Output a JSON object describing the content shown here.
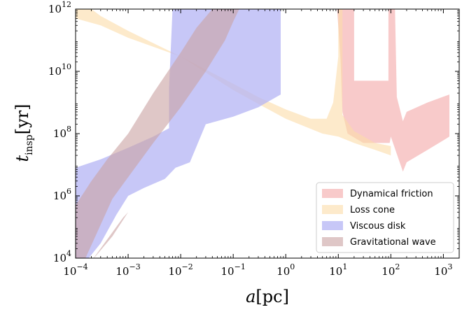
{
  "chart_data": {
    "type": "area",
    "x_scale": "log",
    "y_scale": "log",
    "xlim": [
      0.0001,
      2000
    ],
    "ylim": [
      10000,
      1000000000000
    ],
    "xlabel": {
      "main": "a",
      "unit": "pc"
    },
    "ylabel": {
      "main": "t",
      "sub": "insp",
      "unit": "yr"
    },
    "x_ticks": [
      {
        "value": 0.0001,
        "base": "10",
        "exp": "−4"
      },
      {
        "value": 0.001,
        "base": "10",
        "exp": "−3"
      },
      {
        "value": 0.01,
        "base": "10",
        "exp": "−2"
      },
      {
        "value": 0.1,
        "base": "10",
        "exp": "−1"
      },
      {
        "value": 1,
        "base": "10",
        "exp": "0"
      },
      {
        "value": 10,
        "base": "10",
        "exp": "1"
      },
      {
        "value": 100,
        "base": "10",
        "exp": "2"
      },
      {
        "value": 1000,
        "base": "10",
        "exp": "3"
      }
    ],
    "y_ticks": [
      {
        "value": 10000,
        "base": "10",
        "exp": "4"
      },
      {
        "value": 1000000,
        "base": "10",
        "exp": "6"
      },
      {
        "value": 100000000,
        "base": "10",
        "exp": "8"
      },
      {
        "value": 10000000000,
        "base": "10",
        "exp": "10"
      },
      {
        "value": 1000000000000,
        "base": "10",
        "exp": "12"
      }
    ],
    "grid": false,
    "legend_position": "bottom-right",
    "series": [
      {
        "name": "Dynamical friction",
        "color": "#f4a6a6",
        "opacity": 0.6,
        "polygons": [
          [
            [
              9.5,
              1000000000000.0
            ],
            [
              20,
              1000000000000.0
            ],
            [
              20,
              5000000000.0
            ],
            [
              90,
              5000000000.0
            ],
            [
              90,
              1000000000000.0
            ],
            [
              120,
              1000000000000.0
            ],
            [
              130,
              1500000000.0
            ],
            [
              170,
              250000000.0
            ],
            [
              200,
              500000000.0
            ],
            [
              500,
              1000000000.0
            ],
            [
              1300,
              1800000000.0
            ],
            [
              1300,
              80000000.0
            ],
            [
              500,
              30000000.0
            ],
            [
              200,
              12000000.0
            ],
            [
              170,
              6000000.0
            ],
            [
              100,
              80000000.0
            ],
            [
              95,
              50000000.0
            ],
            [
              30,
              50000000.0
            ],
            [
              15,
              100000000.0
            ],
            [
              12,
              500000000.0
            ],
            [
              11,
              25000000000.0
            ],
            [
              9.5,
              1000000000000.0
            ]
          ]
        ]
      },
      {
        "name": "Loss cone",
        "color": "#fbdca8",
        "opacity": 0.6,
        "polygons": [
          [
            [
              0.0001,
              500000000000.0
            ],
            [
              0.0003,
              300000000000.0
            ],
            [
              0.001,
              120000000000.0
            ],
            [
              0.01,
              30000000000.0
            ],
            [
              0.1,
              4000000000.0
            ],
            [
              0.3,
              1500000000.0
            ],
            [
              1,
              600000000.0
            ],
            [
              3,
              300000000.0
            ],
            [
              6,
              300000000.0
            ],
            [
              8,
              1000000000.0
            ],
            [
              10,
              30000000000.0
            ],
            [
              10,
              1000000000000.0
            ],
            [
              12,
              1000000000000.0
            ],
            [
              12,
              400000000.0
            ],
            [
              20,
              120000000.0
            ],
            [
              50,
              50000000.0
            ],
            [
              100,
              40000000.0
            ],
            [
              100,
              20000000.0
            ],
            [
              50,
              30000000.0
            ],
            [
              20,
              50000000.0
            ],
            [
              10,
              80000000.0
            ],
            [
              5,
              100000000.0
            ],
            [
              1,
              300000000.0
            ],
            [
              0.3,
              900000000.0
            ],
            [
              0.1,
              2500000000.0
            ],
            [
              0.01,
              30000000000.0
            ],
            [
              0.001,
              200000000000.0
            ],
            [
              0.0003,
              600000000000.0
            ],
            [
              0.0002,
              1000000000000.0
            ],
            [
              0.0001,
              1000000000000.0
            ]
          ]
        ]
      },
      {
        "name": "Viscous disk",
        "color": "#b4b4f4",
        "opacity": 0.75,
        "polygons": [
          [
            [
              0.0001,
              8000000.0
            ],
            [
              0.0003,
              15000000.0
            ],
            [
              0.001,
              35000000.0
            ],
            [
              0.003,
              80000000.0
            ],
            [
              0.006,
              150000000.0
            ],
            [
              0.006,
              3000000000.0
            ],
            [
              0.007,
              1000000000000.0
            ],
            [
              0.8,
              1000000000000.0
            ],
            [
              0.8,
              1800000000.0
            ],
            [
              0.3,
              700000000.0
            ],
            [
              0.1,
              350000000.0
            ],
            [
              0.03,
              200000000.0
            ],
            [
              0.015,
              12000000.0
            ],
            [
              0.008,
              8000000.0
            ],
            [
              0.005,
              3500000.0
            ],
            [
              0.002,
              1800000.0
            ],
            [
              0.001,
              1000000.0
            ],
            [
              0.0006,
              250000.0
            ],
            [
              0.0003,
              30000.0
            ],
            [
              0.0001,
              3000.0
            ]
          ]
        ]
      },
      {
        "name": "Gravitational wave",
        "color": "#c9a1a1",
        "opacity": 0.6,
        "polygons": [
          [
            [
              0.0001,
              2000.0
            ],
            [
              0.0005,
              800000.0
            ],
            [
              0.001,
              4000000.0
            ],
            [
              0.003,
              50000000.0
            ],
            [
              0.01,
              700000000.0
            ],
            [
              0.03,
              10000000000.0
            ],
            [
              0.07,
              100000000000.0
            ],
            [
              0.1,
              400000000000.0
            ],
            [
              0.13,
              1000000000000.0
            ],
            [
              0.04,
              1000000000000.0
            ],
            [
              0.02,
              250000000000.0
            ],
            [
              0.01,
              40000000000.0
            ],
            [
              0.003,
              2000000000.0
            ],
            [
              0.001,
              100000000.0
            ],
            [
              0.0004,
              15000000.0
            ],
            [
              0.0002,
              3000000.0
            ],
            [
              0.0001,
              500000.0
            ],
            [
              8e-05,
              200000.0
            ]
          ],
          [
            [
              0.0002,
              8000.0
            ],
            [
              0.0005,
              50000.0
            ],
            [
              0.001,
              300000.0
            ],
            [
              0.0008,
              200000.0
            ]
          ]
        ]
      }
    ]
  }
}
